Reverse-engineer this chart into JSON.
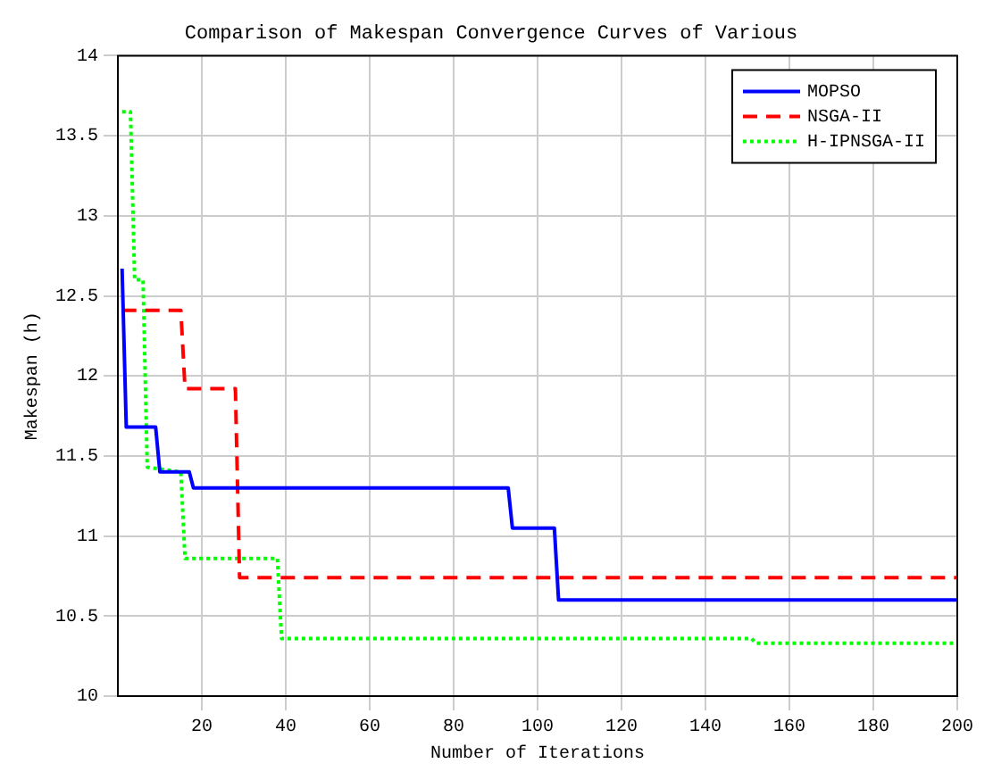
{
  "chart_data": {
    "type": "line",
    "title": "Comparison of Makespan Convergence Curves of Various",
    "xlabel": "Number of Iterations",
    "ylabel": "Makespan (h)",
    "series": [
      {
        "name": "MOPSO",
        "color": "#0000ff",
        "line_style": "solid",
        "x": [
          1,
          2,
          9,
          10,
          17,
          18,
          93,
          94,
          104,
          105,
          200
        ],
        "values": [
          12.67,
          11.68,
          11.68,
          11.4,
          11.4,
          11.3,
          11.3,
          11.05,
          11.05,
          10.6,
          10.6
        ]
      },
      {
        "name": "NSGA-II",
        "color": "#ff0000",
        "line_style": "dashed",
        "x": [
          1,
          15,
          16,
          28,
          29,
          200
        ],
        "values": [
          12.41,
          12.41,
          11.92,
          11.92,
          10.74,
          10.74
        ]
      },
      {
        "name": "H-IPNSGA-II",
        "color": "#00ff00",
        "line_style": "dotted",
        "x": [
          1,
          3,
          4,
          6,
          7,
          15,
          16,
          38,
          39,
          151,
          152,
          200
        ],
        "values": [
          13.65,
          13.65,
          12.6,
          12.6,
          11.43,
          11.4,
          10.86,
          10.86,
          10.36,
          10.36,
          10.33,
          10.33
        ]
      }
    ],
    "xlim": [
      0,
      200
    ],
    "xticks": [
      20,
      40,
      60,
      80,
      100,
      120,
      140,
      160,
      180,
      200
    ],
    "ylim": [
      10,
      14
    ],
    "yticks": [
      10,
      10.5,
      11,
      11.5,
      12,
      12.5,
      13,
      13.5,
      14
    ],
    "grid": true,
    "legend": "top right"
  }
}
